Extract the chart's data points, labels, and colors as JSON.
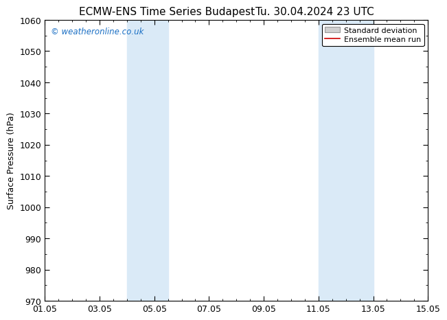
{
  "title": "ECMW-ENS Time Series Budapest",
  "title2": "Tu. 30.04.2024 23 UTC",
  "ylabel": "Surface Pressure (hPa)",
  "ylim": [
    970,
    1060
  ],
  "yticks": [
    970,
    980,
    990,
    1000,
    1010,
    1020,
    1030,
    1040,
    1050,
    1060
  ],
  "xlim_start": 1,
  "xlim_end": 15,
  "xtick_labels": [
    "01.05",
    "03.05",
    "05.05",
    "07.05",
    "09.05",
    "11.05",
    "13.05",
    "15.05"
  ],
  "xtick_positions": [
    1,
    3,
    5,
    7,
    9,
    11,
    13,
    15
  ],
  "shaded_bands": [
    {
      "x_start": 4.0,
      "x_end": 5.5
    },
    {
      "x_start": 11.0,
      "x_end": 13.0
    }
  ],
  "shaded_color": "#daeaf7",
  "watermark": "© weatheronline.co.uk",
  "watermark_color": "#1a6fc4",
  "legend_std_label": "Standard deviation",
  "legend_mean_label": "Ensemble mean run",
  "legend_std_facecolor": "#d0d0d0",
  "legend_std_edgecolor": "#999999",
  "legend_mean_color": "#cc0000",
  "background_color": "#ffffff",
  "spine_color": "#000000",
  "title_fontsize": 11,
  "ylabel_fontsize": 9,
  "tick_fontsize": 9,
  "legend_fontsize": 8
}
